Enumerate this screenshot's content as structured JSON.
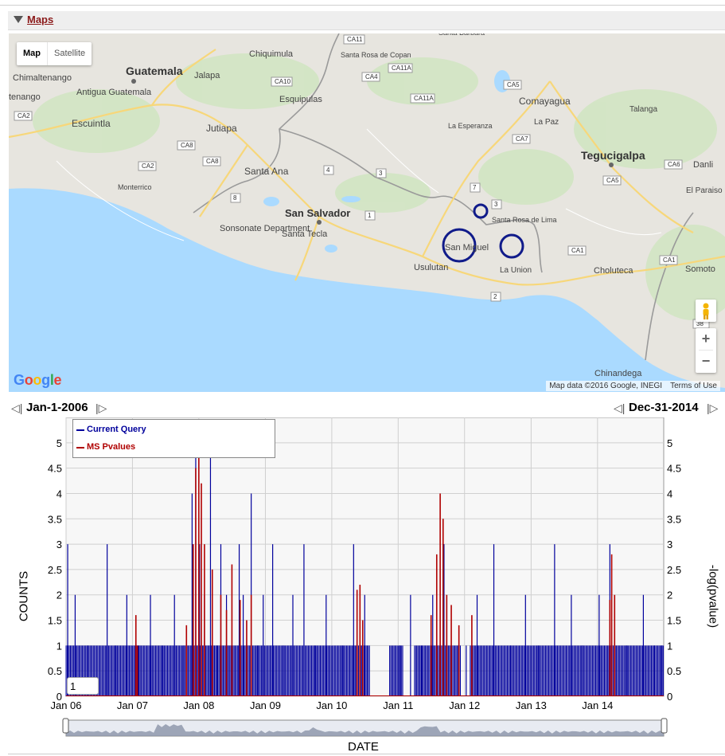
{
  "maps_panel": {
    "toggle_icon": "triangle-down-icon",
    "title": "Maps"
  },
  "map": {
    "map_type_buttons": [
      "Map",
      "Satellite"
    ],
    "zoom_in": "+",
    "zoom_out": "−",
    "google_logo": "Google",
    "attribution": "Map data ©2016 Google, INEGI",
    "terms": "Terms of Use",
    "place_labels": [
      "Chiquimula",
      "Santa Rosa de Copan",
      "Santa Barbara",
      "Chimaltenango",
      "Guatemala",
      "Jalapa",
      "Esquipulas",
      "Comayagua",
      "Antigua Guatemala",
      "Talanga",
      "Escuintla",
      "La Esperanza",
      "La Paz",
      "Jutiapa",
      "Tegucigalpa",
      "Danli",
      "Santa Ana",
      "Monterrico",
      "El Paraiso",
      "San Salvador",
      "Santa Rosa de Lima",
      "Sonsonate Department",
      "Santa Tecla",
      "San Miguel",
      "Somoto",
      "Usulutan",
      "La Union",
      "Choluteca",
      "Chinandega",
      "tenango"
    ],
    "route_shields": [
      "CA11",
      "CA11A",
      "CA4",
      "CA10",
      "CA5",
      "CA11A",
      "CA2",
      "CA8",
      "CA8",
      "CA2",
      "CA7",
      "4",
      "3",
      "CA6",
      "8",
      "CA5",
      "7",
      "3",
      "1",
      "CA1",
      "2",
      "CA1",
      "CA1",
      "38"
    ],
    "circle_markers_color": "#101b8a"
  },
  "timeline": {
    "start_date": "Jan-1-2006",
    "end_date": "Dec-31-2014",
    "prev_icon": "step-back-icon",
    "next_icon": "step-forward-icon"
  },
  "chart_data": {
    "type": "line",
    "ylabel": "COUNTS",
    "y2label": "-log(pvalue)",
    "xlabel": "DATE",
    "x_ticks": [
      "Jan 06",
      "Jan 07",
      "Jan 08",
      "Jan 09",
      "Jan 10",
      "Jan 11",
      "Jan 12",
      "Jan 13",
      "Jan 14"
    ],
    "xlim": [
      "2006-01-01",
      "2014-12-31"
    ],
    "y_ticks": [
      "0",
      "0.5",
      "1",
      "1.5",
      "2",
      "2.5",
      "3",
      "3.5",
      "4",
      "4.5",
      "5"
    ],
    "ylim": [
      0,
      5.5
    ],
    "y2_ticks": [
      "0",
      "0.5",
      "1",
      "1.5",
      "2",
      "2.5",
      "3",
      "3.5",
      "4",
      "4.5",
      "5"
    ],
    "y2lim": [
      0,
      5.5
    ],
    "grid": true,
    "legend_position": "top-left",
    "series": [
      {
        "name": "Current Query",
        "color": "#00009c",
        "axis": "left",
        "points": [
          [
            "2006-01-10",
            3
          ],
          [
            "2006-02-20",
            2
          ],
          [
            "2006-05-01",
            1
          ],
          [
            "2006-08-15",
            3
          ],
          [
            "2006-10-01",
            1
          ],
          [
            "2006-12-01",
            2
          ],
          [
            "2007-02-05",
            1
          ],
          [
            "2007-04-10",
            2
          ],
          [
            "2007-06-15",
            1
          ],
          [
            "2007-08-20",
            2
          ],
          [
            "2007-10-10",
            1
          ],
          [
            "2007-11-25",
            4
          ],
          [
            "2007-12-15",
            5
          ],
          [
            "2008-01-05",
            3
          ],
          [
            "2008-02-01",
            2
          ],
          [
            "2008-03-05",
            5
          ],
          [
            "2008-04-10",
            1
          ],
          [
            "2008-05-01",
            3
          ],
          [
            "2008-06-01",
            2
          ],
          [
            "2008-07-01",
            1
          ],
          [
            "2008-08-10",
            3
          ],
          [
            "2008-09-01",
            2
          ],
          [
            "2008-10-15",
            4
          ],
          [
            "2008-11-20",
            1
          ],
          [
            "2008-12-20",
            2
          ],
          [
            "2009-02-10",
            3
          ],
          [
            "2009-04-10",
            1
          ],
          [
            "2009-06-01",
            2
          ],
          [
            "2009-08-01",
            3
          ],
          [
            "2009-10-01",
            1
          ],
          [
            "2009-12-01",
            2
          ],
          [
            "2010-03-01",
            1
          ],
          [
            "2010-05-01",
            3
          ],
          [
            "2010-07-01",
            2
          ],
          [
            "2011-01-10",
            1
          ],
          [
            "2011-03-10",
            2
          ],
          [
            "2011-05-10",
            1
          ],
          [
            "2011-07-10",
            2
          ],
          [
            "2011-09-10",
            3
          ],
          [
            "2012-01-10",
            1
          ],
          [
            "2012-03-10",
            2
          ],
          [
            "2012-06-10",
            3
          ],
          [
            "2012-09-10",
            1
          ],
          [
            "2012-12-01",
            2
          ],
          [
            "2013-02-10",
            1
          ],
          [
            "2013-05-10",
            3
          ],
          [
            "2013-08-10",
            2
          ],
          [
            "2013-10-10",
            1
          ],
          [
            "2014-01-10",
            2
          ],
          [
            "2014-03-10",
            3
          ],
          [
            "2014-06-10",
            1
          ],
          [
            "2014-09-10",
            2
          ],
          [
            "2014-11-10",
            1
          ],
          [
            "2014-12-20",
            1
          ]
        ]
      },
      {
        "name": "MS Pvalues",
        "color": "#b00000",
        "axis": "right",
        "points": [
          [
            "2007-01-20",
            1.6
          ],
          [
            "2007-01-28",
            1.0
          ],
          [
            "2007-10-25",
            1.4
          ],
          [
            "2007-12-01",
            3.0
          ],
          [
            "2007-12-15",
            4.5
          ],
          [
            "2008-01-01",
            4.7
          ],
          [
            "2008-01-15",
            4.2
          ],
          [
            "2008-02-01",
            3.0
          ],
          [
            "2008-03-15",
            2.5
          ],
          [
            "2008-05-01",
            2.0
          ],
          [
            "2008-06-01",
            1.7
          ],
          [
            "2008-07-01",
            2.6
          ],
          [
            "2008-08-15",
            1.9
          ],
          [
            "2008-09-20",
            1.5
          ],
          [
            "2008-10-15",
            2.0
          ],
          [
            "2010-05-20",
            2.1
          ],
          [
            "2010-06-05",
            2.2
          ],
          [
            "2010-06-20",
            1.5
          ],
          [
            "2011-07-01",
            1.6
          ],
          [
            "2011-08-01",
            2.8
          ],
          [
            "2011-08-20",
            4.0
          ],
          [
            "2011-09-05",
            3.5
          ],
          [
            "2011-09-25",
            2.0
          ],
          [
            "2011-10-20",
            1.8
          ],
          [
            "2011-12-01",
            1.4
          ],
          [
            "2012-02-10",
            1.6
          ],
          [
            "2014-03-10",
            1.9
          ],
          [
            "2014-03-20",
            2.8
          ],
          [
            "2014-04-05",
            2.0
          ]
        ]
      }
    ]
  },
  "chart_ui": {
    "legend_labels": [
      "Current Query",
      "MS Pvalues"
    ],
    "value_box": "1"
  }
}
